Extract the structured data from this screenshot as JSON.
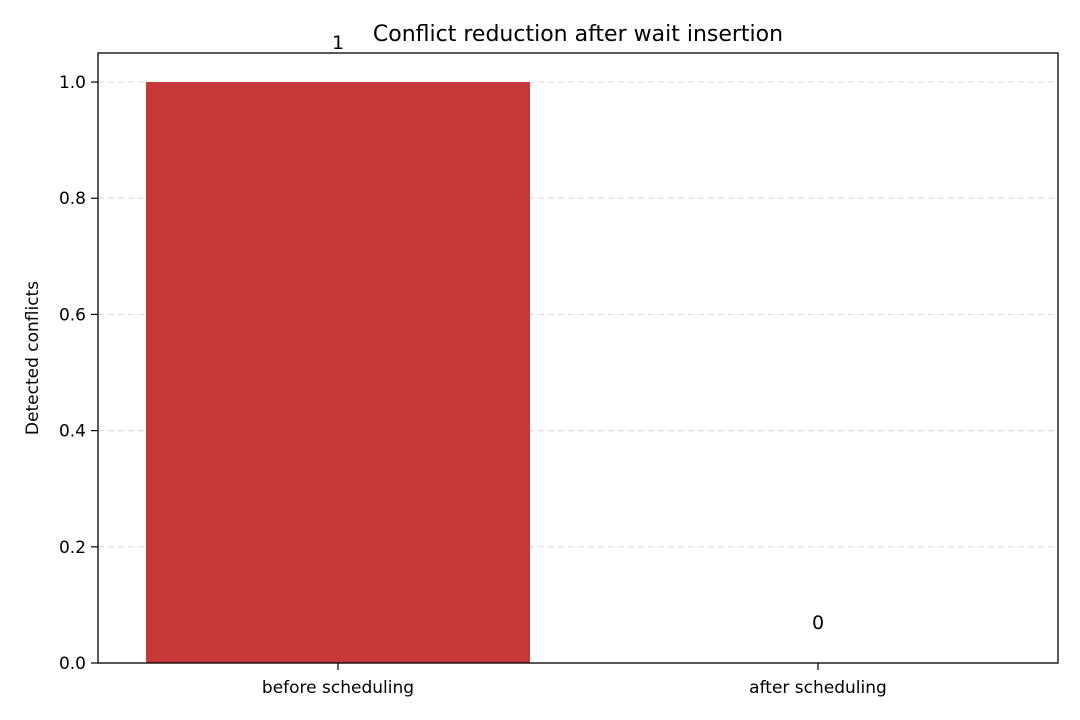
{
  "chart_data": {
    "type": "bar",
    "title": "Conflict reduction after wait insertion",
    "xlabel": "",
    "ylabel": "Detected conflicts",
    "categories": [
      "before scheduling",
      "after scheduling"
    ],
    "values": [
      1,
      0
    ],
    "data_labels": [
      "1",
      "0"
    ],
    "ylim": [
      0,
      1.05
    ],
    "yticks": [
      0.0,
      0.2,
      0.4,
      0.6,
      0.8,
      1.0
    ],
    "ytick_labels": [
      "0.0",
      "0.2",
      "0.4",
      "0.6",
      "0.8",
      "1.0"
    ],
    "grid": "y-dashed",
    "bar_color": "#c63837",
    "grid_color": "#dddddd"
  }
}
